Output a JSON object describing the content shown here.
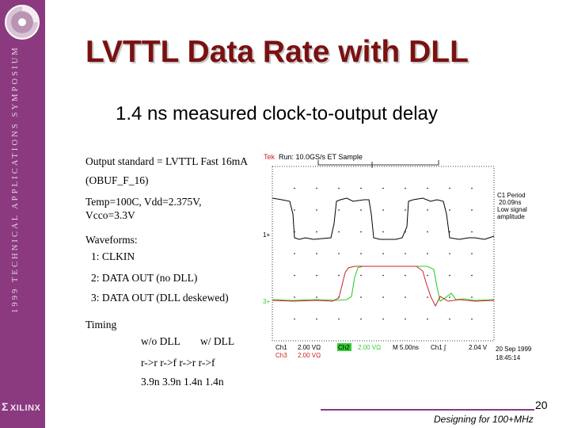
{
  "sidebar": {
    "vertical_text": "1999  TECHNICAL  APPLICATIONS  SYMPOSIUM",
    "logo": "XILINX",
    "cd_icon": "cd-disc-icon",
    "accent_color": "#8b3a7f"
  },
  "slide": {
    "title": "LVTTL Data Rate with DLL",
    "subtitle": "1.4 ns measured clock-to-output delay",
    "title_color": "#7a1111"
  },
  "left_text": {
    "line1": "Output standard = LVTTL Fast 16mA",
    "line2": "(OBUF_F_16)",
    "line3": "Temp=100C, Vdd=2.375V,",
    "line4": "Vcco=3.3V",
    "waveforms": "Waveforms:",
    "wf1": "1: CLKIN",
    "wf2": "2: DATA OUT (no DLL)",
    "wf3": "3: DATA OUT (DLL deskewed)",
    "timing": "Timing",
    "wo_dll": "w/o DLL",
    "w_dll": "w/ DLL",
    "hdr": "r->r   r->f   r->r   r->f",
    "vals": "3.9n   3.9n   1.4n   1.4n"
  },
  "scope": {
    "tek": "Tek",
    "run": "Run: 10.0GS/s ET Sample",
    "c1_period_label": "C1 Period",
    "c1_period_value": "20.09ns",
    "note1": "Low signal",
    "note2": "amplitude",
    "ch1_marker": "1+",
    "ch3_marker": "3+",
    "ch1": "Ch1",
    "ch1_scale": "2.00 VΩ",
    "ch2": "Ch2",
    "ch2_scale": "2.00 VΩ",
    "ch3": "Ch3",
    "ch3_scale": "2.00 VΩ",
    "timebase": "M 5.00ns",
    "trigger": "Ch1 ∫",
    "trigger_level": "2.04 V",
    "date": "20 Sep 1999",
    "time": "18:45:14",
    "colors": {
      "ch1": "#000000",
      "ch2": "#33cc33",
      "ch3": "#cc2222"
    }
  },
  "footer": {
    "page_number": "20",
    "text": "Designing for 100+MHz"
  }
}
